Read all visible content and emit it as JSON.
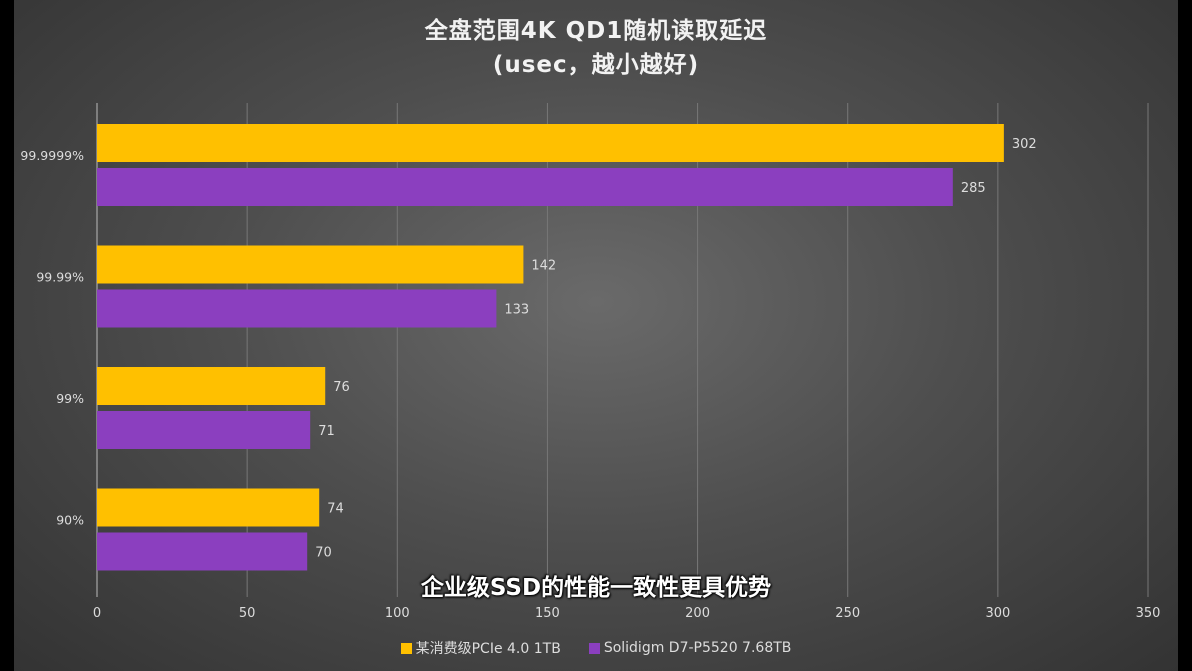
{
  "chart_data": {
    "type": "bar",
    "orientation": "horizontal",
    "title": "全盘范围4K  QD1随机读取延迟",
    "subtitle": "(usec，越小越好)",
    "categories": [
      "99.9999%",
      "99.99%",
      "99%",
      "90%"
    ],
    "series": [
      {
        "name": "某消费级PCIe 4.0 1TB",
        "color": "#ffc000",
        "values": [
          302,
          142,
          76,
          74
        ]
      },
      {
        "name": "Solidigm D7-P5520 7.68TB",
        "color": "#8b3fbf",
        "values": [
          285,
          133,
          71,
          70
        ]
      }
    ],
    "xlim": [
      0,
      350
    ],
    "xticks": [
      0,
      50,
      100,
      150,
      200,
      250,
      300,
      350
    ],
    "grid": true,
    "legend": "bottom"
  },
  "caption": "企业级SSD的性能一致性更具优势"
}
